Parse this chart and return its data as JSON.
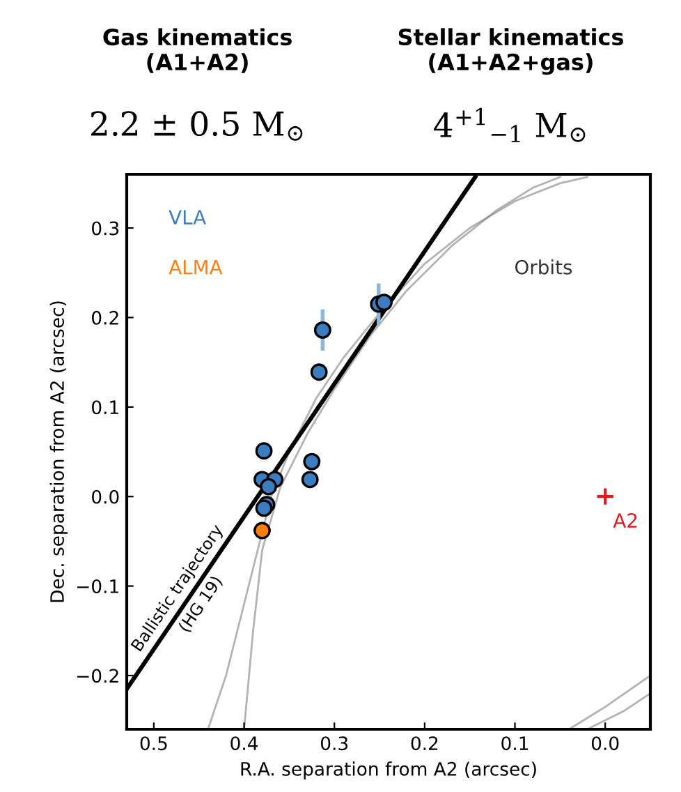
{
  "chart_data": {
    "type": "scatter",
    "xlabel": "R.A. separation from A2 (arcsec)",
    "ylabel": "Dec. separation from A2 (arcsec)",
    "xlim": [
      0.53,
      -0.05
    ],
    "ylim": [
      -0.26,
      0.36
    ],
    "xticks": [
      {
        "value": 0.5,
        "label": "0.5"
      },
      {
        "value": 0.4,
        "label": "0.4"
      },
      {
        "value": 0.3,
        "label": "0.3"
      },
      {
        "value": 0.2,
        "label": "0.2"
      },
      {
        "value": 0.1,
        "label": "0.1"
      },
      {
        "value": 0.0,
        "label": "0.0"
      }
    ],
    "yticks": [
      {
        "value": -0.2,
        "label": "−0.2"
      },
      {
        "value": -0.1,
        "label": "−0.1"
      },
      {
        "value": 0.0,
        "label": "0.0"
      },
      0.1,
      0.2,
      0.3
    ],
    "grid": false,
    "legend": false,
    "annotations": [
      "Gas kinematics\n(A1+A2)",
      "Stellar kinematics\n(A1+A2+gas)",
      "2.2 ± 0.5 M$_{⊙}$",
      "4$^{+1}$$_{−1}$ M$_{⊙}$"
    ],
    "series": [
      {
        "name": "Orbits",
        "type": "line",
        "color": "#808080",
        "x": [
          0.44,
          0.42,
          0.4,
          0.385,
          0.37,
          0.35,
          0.32,
          0.29,
          0.25,
          0.2,
          0.15,
          0.1,
          0.05,
          0.02
        ],
        "values": [
          -0.26,
          -0.2,
          -0.12,
          -0.06,
          0.0,
          0.05,
          0.11,
          0.155,
          0.205,
          0.26,
          0.3,
          0.33,
          0.35,
          0.357
        ]
      },
      {
        "type": "line",
        "color": "#808080",
        "x": [
          0.4,
          0.39,
          0.38,
          0.36,
          0.33,
          0.3,
          0.26,
          0.22,
          0.17,
          0.12,
          0.08,
          0.05
        ],
        "values": [
          -0.26,
          -0.15,
          -0.06,
          0.01,
          0.07,
          0.12,
          0.18,
          0.23,
          0.28,
          0.32,
          0.345,
          0.357
        ]
      },
      {
        "type": "line",
        "color": "#808080",
        "x": [
          0.04,
          0.0,
          -0.05
        ],
        "values": [
          -0.26,
          -0.235,
          -0.2
        ]
      },
      {
        "type": "line",
        "color": "#808080",
        "x": [
          0.02,
          -0.02,
          -0.05
        ],
        "values": [
          -0.26,
          -0.24,
          -0.22
        ]
      },
      {
        "name": "Ballistic trajectory\n(HG 19)",
        "type": "line",
        "color": "#000000",
        "x": [
          0.53,
          0.144
        ],
        "values": [
          -0.215,
          0.357
        ]
      },
      {
        "name": "VLA",
        "marker": "circle",
        "color": "#3a7dc0",
        "x": [
          0.251,
          0.245,
          0.313,
          0.317,
          0.378,
          0.38,
          0.366,
          0.373,
          0.375,
          0.378,
          0.325,
          0.327
        ],
        "values": [
          0.215,
          0.217,
          0.186,
          0.139,
          0.051,
          0.019,
          0.019,
          0.011,
          -0.009,
          -0.013,
          0.039,
          0.019
        ],
        "errors": [
          0.023,
          null,
          0.023,
          null,
          null,
          null,
          null,
          null,
          null,
          null,
          null,
          null
        ],
        "xerrors": [
          null,
          null,
          null,
          null,
          null,
          null,
          null,
          null,
          null,
          null,
          null,
          0.008
        ]
      },
      {
        "name": "ALMA",
        "marker": "circle",
        "color": "#ff7f0e",
        "x": [
          0.38
        ],
        "values": [
          -0.038
        ]
      },
      {
        "name": "A2",
        "marker": "cross",
        "color": "#e41a1c",
        "x": [
          0.0
        ],
        "values": [
          0.0
        ]
      }
    ]
  }
}
